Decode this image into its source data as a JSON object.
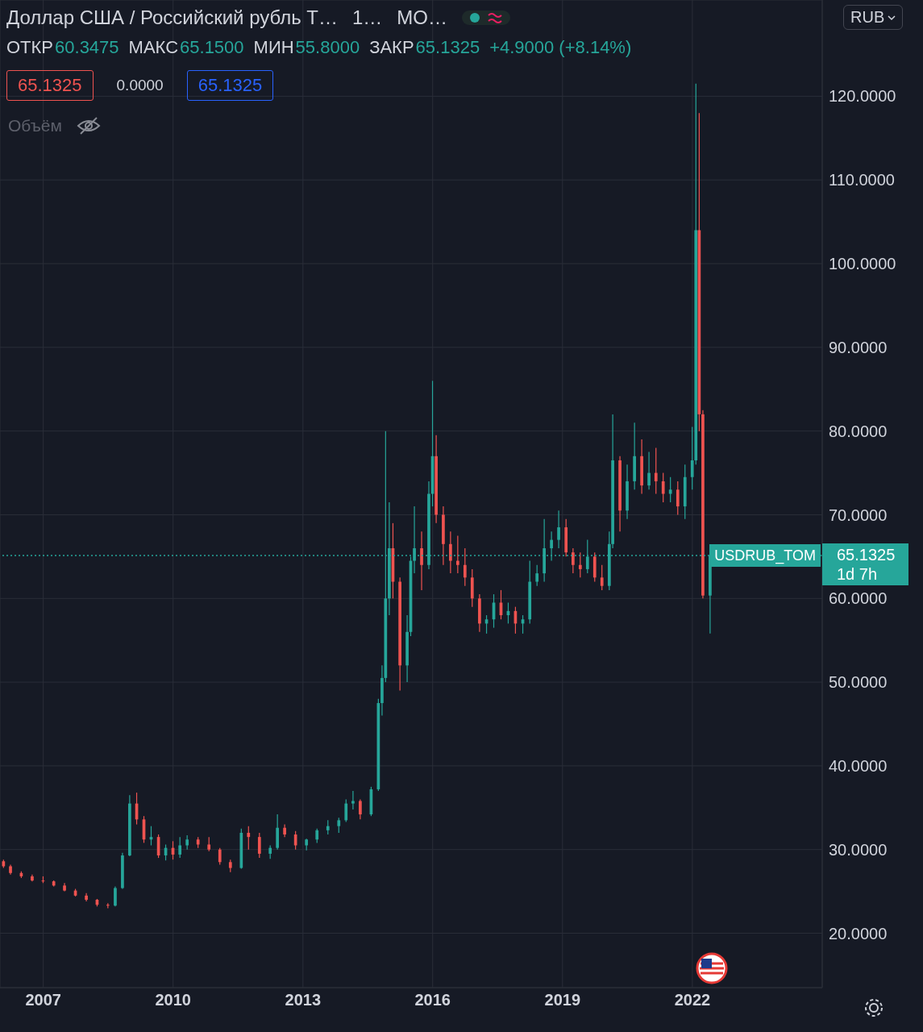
{
  "chart_data": {
    "type": "candlestick",
    "title": "Доллар США / Российский рубль Т…",
    "annotations": [
      "1…",
      "MO…",
      "ОТКР",
      "60.3475",
      "МАКС",
      "65.1500",
      "МИН",
      "55.8000",
      "ЗАКР",
      "65.1325",
      "+4.9000 (+8.14%)",
      "65.1325",
      "0.0000",
      "65.1325",
      "Объём",
      "RUB",
      "1d 7h"
    ],
    "x": [
      "2006-02",
      "2006-04",
      "2006-07",
      "2006-10",
      "2007-01",
      "2007-04",
      "2007-07",
      "2007-10",
      "2008-01",
      "2008-04",
      "2008-07",
      "2008-09",
      "2008-11",
      "2009-01",
      "2009-03",
      "2009-05",
      "2009-07",
      "2009-09",
      "2009-11",
      "2010-01",
      "2010-03",
      "2010-05",
      "2010-08",
      "2010-11",
      "2011-02",
      "2011-05",
      "2011-08",
      "2011-10",
      "2012-01",
      "2012-04",
      "2012-06",
      "2012-08",
      "2012-11",
      "2013-02",
      "2013-05",
      "2013-08",
      "2013-11",
      "2014-01",
      "2014-03",
      "2014-05",
      "2014-08",
      "2014-10",
      "2014-11",
      "2014-12",
      "2015-01",
      "2015-02",
      "2015-04",
      "2015-06",
      "2015-07",
      "2015-08",
      "2015-10",
      "2015-12",
      "2016-01",
      "2016-02",
      "2016-04",
      "2016-06",
      "2016-08",
      "2016-10",
      "2016-12",
      "2017-02",
      "2017-04",
      "2017-06",
      "2017-08",
      "2017-10",
      "2017-12",
      "2018-02",
      "2018-04",
      "2018-06",
      "2018-08",
      "2018-10",
      "2018-12",
      "2019-02",
      "2019-04",
      "2019-06",
      "2019-08",
      "2019-10",
      "2019-12",
      "2020-02",
      "2020-03",
      "2020-05",
      "2020-07",
      "2020-09",
      "2020-11",
      "2021-01",
      "2021-03",
      "2021-05",
      "2021-07",
      "2021-09",
      "2021-11",
      "2022-01",
      "2022-02",
      "2022-03",
      "2022-04",
      "2022-06"
    ],
    "ohlc": [
      [
        28.6,
        28.8,
        27.8,
        28.0
      ],
      [
        28.0,
        28.2,
        27.0,
        27.2
      ],
      [
        27.2,
        27.4,
        26.6,
        26.8
      ],
      [
        26.8,
        27.0,
        26.2,
        26.3
      ],
      [
        26.3,
        26.8,
        26.0,
        26.2
      ],
      [
        26.2,
        26.3,
        25.6,
        25.7
      ],
      [
        25.7,
        26.0,
        25.0,
        25.1
      ],
      [
        25.1,
        25.3,
        24.4,
        24.5
      ],
      [
        24.5,
        24.8,
        23.8,
        24.0
      ],
      [
        24.0,
        24.1,
        23.2,
        23.4
      ],
      [
        23.4,
        23.6,
        23.0,
        23.3
      ],
      [
        23.3,
        25.6,
        23.2,
        25.4
      ],
      [
        25.4,
        29.6,
        25.3,
        29.3
      ],
      [
        29.3,
        36.5,
        29.2,
        35.5
      ],
      [
        35.5,
        36.8,
        33.0,
        33.6
      ],
      [
        33.6,
        34.0,
        30.8,
        31.2
      ],
      [
        31.2,
        32.8,
        30.5,
        31.5
      ],
      [
        31.5,
        31.8,
        29.0,
        29.3
      ],
      [
        29.3,
        30.6,
        28.7,
        30.2
      ],
      [
        30.2,
        31.0,
        28.8,
        29.4
      ],
      [
        29.4,
        31.5,
        29.0,
        30.5
      ],
      [
        30.5,
        31.7,
        30.0,
        31.2
      ],
      [
        31.2,
        31.5,
        30.2,
        30.6
      ],
      [
        30.6,
        31.5,
        29.8,
        30.0
      ],
      [
        30.0,
        30.2,
        28.2,
        28.5
      ],
      [
        28.5,
        28.8,
        27.3,
        27.8
      ],
      [
        27.8,
        32.5,
        27.7,
        32.0
      ],
      [
        32.0,
        32.8,
        30.0,
        31.5
      ],
      [
        31.5,
        32.0,
        29.0,
        29.5
      ],
      [
        29.5,
        30.5,
        28.9,
        30.2
      ],
      [
        30.2,
        34.2,
        30.0,
        32.6
      ],
      [
        32.6,
        33.0,
        31.5,
        31.8
      ],
      [
        31.8,
        32.2,
        30.0,
        30.5
      ],
      [
        30.5,
        31.3,
        29.9,
        31.2
      ],
      [
        31.2,
        32.5,
        30.8,
        32.3
      ],
      [
        32.3,
        33.5,
        31.8,
        32.8
      ],
      [
        32.8,
        33.8,
        32.0,
        33.5
      ],
      [
        33.5,
        36.0,
        33.3,
        35.5
      ],
      [
        35.5,
        37.0,
        34.8,
        35.8
      ],
      [
        35.8,
        36.0,
        33.6,
        34.2
      ],
      [
        34.2,
        37.5,
        34.0,
        37.2
      ],
      [
        37.2,
        48.0,
        37.0,
        47.5
      ],
      [
        47.5,
        52.0,
        46.0,
        50.5
      ],
      [
        50.5,
        80.0,
        50.0,
        60.0
      ],
      [
        60.0,
        71.5,
        58.0,
        66.0
      ],
      [
        66.0,
        69.0,
        60.0,
        62.0
      ],
      [
        62.0,
        62.5,
        49.0,
        52.0
      ],
      [
        52.0,
        58.0,
        50.0,
        56.0
      ],
      [
        56.0,
        65.0,
        55.5,
        64.5
      ],
      [
        64.5,
        71.0,
        63.0,
        66.0
      ],
      [
        66.0,
        68.0,
        61.0,
        64.0
      ],
      [
        64.0,
        74.0,
        63.5,
        72.5
      ],
      [
        72.5,
        86.0,
        71.0,
        77.0
      ],
      [
        77.0,
        79.5,
        69.0,
        70.0
      ],
      [
        70.0,
        71.0,
        64.0,
        66.5
      ],
      [
        66.5,
        68.0,
        63.0,
        64.5
      ],
      [
        64.5,
        67.5,
        63.0,
        64.0
      ],
      [
        64.0,
        66.0,
        61.5,
        62.5
      ],
      [
        62.5,
        63.5,
        59.0,
        60.0
      ],
      [
        60.0,
        60.5,
        56.0,
        57.0
      ],
      [
        57.0,
        58.0,
        55.8,
        57.5
      ],
      [
        57.5,
        60.5,
        56.5,
        59.5
      ],
      [
        59.5,
        61.0,
        57.5,
        58.0
      ],
      [
        58.0,
        59.5,
        57.0,
        58.5
      ],
      [
        58.5,
        59.0,
        55.8,
        57.0
      ],
      [
        57.0,
        58.0,
        55.8,
        57.5
      ],
      [
        57.5,
        64.5,
        57.0,
        62.0
      ],
      [
        62.0,
        64.0,
        61.5,
        63.0
      ],
      [
        63.0,
        69.5,
        62.0,
        66.0
      ],
      [
        66.0,
        68.0,
        64.5,
        67.0
      ],
      [
        67.0,
        70.5,
        66.0,
        68.5
      ],
      [
        68.5,
        69.5,
        65.0,
        65.5
      ],
      [
        65.5,
        66.0,
        63.0,
        64.0
      ],
      [
        64.0,
        65.5,
        62.5,
        63.5
      ],
      [
        63.5,
        67.0,
        63.0,
        65.0
      ],
      [
        65.0,
        65.5,
        62.0,
        62.5
      ],
      [
        62.5,
        64.0,
        61.0,
        61.5
      ],
      [
        61.5,
        68.0,
        61.0,
        66.5
      ],
      [
        66.5,
        82.0,
        66.0,
        76.5
      ],
      [
        76.5,
        77.0,
        68.0,
        70.5
      ],
      [
        70.5,
        76.0,
        69.5,
        74.0
      ],
      [
        74.0,
        81.0,
        73.0,
        77.0
      ],
      [
        77.0,
        79.0,
        72.5,
        73.5
      ],
      [
        73.5,
        77.5,
        73.0,
        75.0
      ],
      [
        75.0,
        78.0,
        72.5,
        74.0
      ],
      [
        74.0,
        75.0,
        71.5,
        72.5
      ],
      [
        72.5,
        74.5,
        71.5,
        73.0
      ],
      [
        73.0,
        74.0,
        70.0,
        71.0
      ],
      [
        71.0,
        76.0,
        69.5,
        74.5
      ],
      [
        74.5,
        80.5,
        73.0,
        76.5
      ],
      [
        76.5,
        121.5,
        76.0,
        104.0
      ],
      [
        104.0,
        118.0,
        80.0,
        82.0
      ],
      [
        82.0,
        82.5,
        60.0,
        60.3475
      ],
      [
        60.3475,
        65.15,
        55.8,
        65.1325
      ]
    ],
    "colors": [
      "#ef5350",
      "#ef5350",
      "#ef5350",
      "#ef5350",
      "#ef5350",
      "#ef5350",
      "#ef5350",
      "#ef5350",
      "#ef5350",
      "#ef5350",
      "#ef5350",
      "#26a69a",
      "#26a69a",
      "#26a69a",
      "#ef5350",
      "#ef5350",
      "#26a69a",
      "#ef5350",
      "#26a69a",
      "#ef5350",
      "#26a69a",
      "#26a69a",
      "#ef5350",
      "#ef5350",
      "#ef5350",
      "#ef5350",
      "#26a69a",
      "#ef5350",
      "#ef5350",
      "#26a69a",
      "#26a69a",
      "#ef5350",
      "#ef5350",
      "#26a69a",
      "#26a69a",
      "#26a69a",
      "#26a69a",
      "#26a69a",
      "#26a69a",
      "#ef5350",
      "#26a69a",
      "#26a69a",
      "#26a69a",
      "#26a69a",
      "#26a69a",
      "#ef5350",
      "#ef5350",
      "#26a69a",
      "#26a69a",
      "#26a69a",
      "#ef5350",
      "#26a69a",
      "#26a69a",
      "#ef5350",
      "#ef5350",
      "#ef5350",
      "#ef5350",
      "#ef5350",
      "#ef5350",
      "#ef5350",
      "#26a69a",
      "#26a69a",
      "#ef5350",
      "#26a69a",
      "#ef5350",
      "#26a69a",
      "#26a69a",
      "#26a69a",
      "#26a69a",
      "#26a69a",
      "#26a69a",
      "#ef5350",
      "#ef5350",
      "#ef5350",
      "#26a69a",
      "#ef5350",
      "#ef5350",
      "#26a69a",
      "#26a69a",
      "#ef5350",
      "#26a69a",
      "#26a69a",
      "#ef5350",
      "#26a69a",
      "#ef5350",
      "#ef5350",
      "#26a69a",
      "#ef5350",
      "#26a69a",
      "#26a69a",
      "#26a69a",
      "#ef5350",
      "#ef5350",
      "#26a69a"
    ],
    "xlim": [
      "2006-01",
      "2025-01"
    ],
    "xticks": [
      "2007",
      "2010",
      "2013",
      "2016",
      "2019",
      "2022"
    ],
    "ylim": [
      13.5,
      131.5
    ],
    "yticks": [
      {
        "value": 20,
        "label": "20.0000"
      },
      {
        "value": 30,
        "label": "30.0000"
      },
      {
        "value": 40,
        "label": "40.0000"
      },
      {
        "value": 50,
        "label": "50.0000"
      },
      {
        "value": 60,
        "label": "60.0000"
      },
      {
        "value": 70,
        "label": "70.0000"
      },
      {
        "value": 80,
        "label": "80.0000"
      },
      {
        "value": 90,
        "label": "90.0000"
      },
      {
        "value": 100,
        "label": "100.0000"
      },
      {
        "value": 110,
        "label": "110.0000"
      },
      {
        "value": 120,
        "label": "120.0000"
      }
    ],
    "ref_lines": [
      {
        "axis": "y",
        "value": 65.1325,
        "label": "USDRUB_TOM",
        "color": "#26a69a",
        "line_style": "dotted"
      }
    ],
    "grid": true
  }
}
